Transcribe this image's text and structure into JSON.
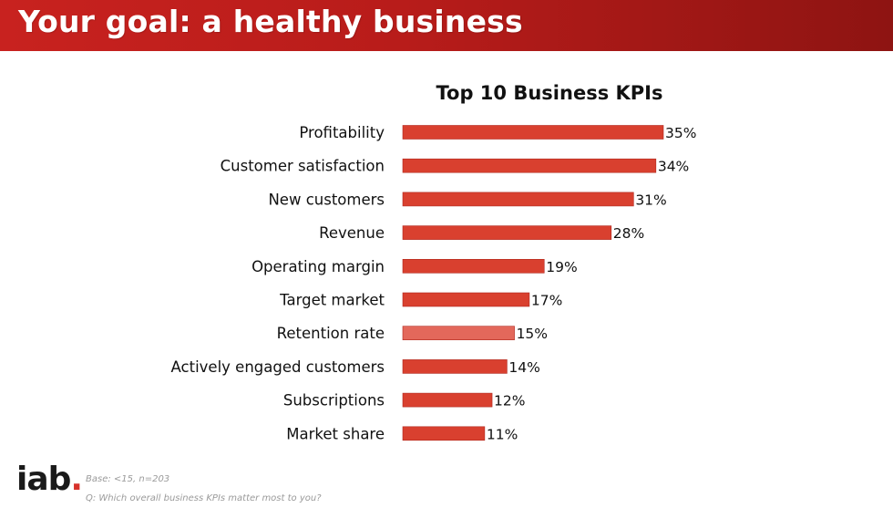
{
  "header": {
    "title": "Your goal: a healthy business"
  },
  "chart_data": {
    "type": "bar",
    "orientation": "horizontal",
    "title": "Top 10 Business KPIs",
    "categories": [
      "Profitability",
      "Customer satisfaction",
      "New customers",
      "Revenue",
      "Operating margin",
      "Target market",
      "Retention rate",
      "Actively engaged customers",
      "Subscriptions",
      "Market share"
    ],
    "values": [
      35,
      34,
      31,
      28,
      19,
      17,
      15,
      14,
      12,
      11
    ],
    "value_labels": [
      "35%",
      "34%",
      "31%",
      "28%",
      "19%",
      "17%",
      "15%",
      "14%",
      "12%",
      "11%"
    ],
    "xlim": [
      0,
      35
    ],
    "grid": false,
    "bar_color": "#d9402f",
    "highlight_color": "#e3685b",
    "highlight_index": 6
  },
  "footer": {
    "logo": {
      "text": "iab",
      "dot": "."
    },
    "base_note": "Base: <15, n=203",
    "question_note": "Q: Which overall business KPIs matter most to you?"
  }
}
